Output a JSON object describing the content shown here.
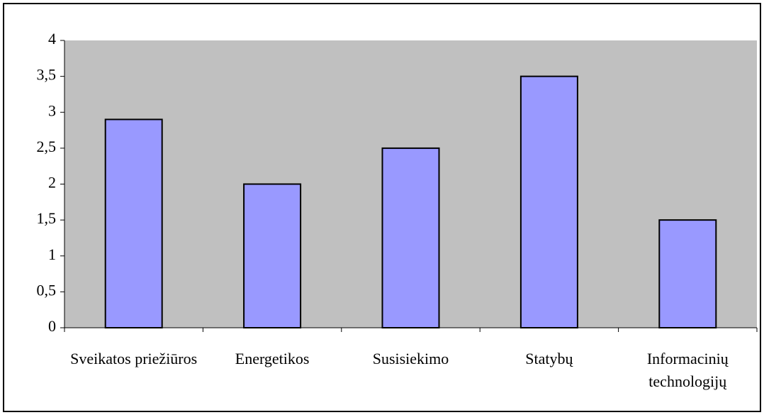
{
  "chart_data": {
    "type": "bar",
    "categories": [
      "Sveikatos priežiūros",
      "Energetikos",
      "Susisiekimo",
      "Statybų",
      "Informacinių technologijų"
    ],
    "values": [
      2.9,
      2,
      2.5,
      3.5,
      1.5
    ],
    "color": "#9999ff",
    "ylim": [
      0,
      4
    ],
    "yticks": [
      0,
      {
        "value": 0.5,
        "label": "0,5"
      },
      1,
      {
        "value": 1.5,
        "label": "1,5"
      },
      2,
      {
        "value": 2.5,
        "label": "2,5"
      },
      3,
      {
        "value": 3.5,
        "label": "3,5"
      },
      4
    ],
    "grid": false
  }
}
